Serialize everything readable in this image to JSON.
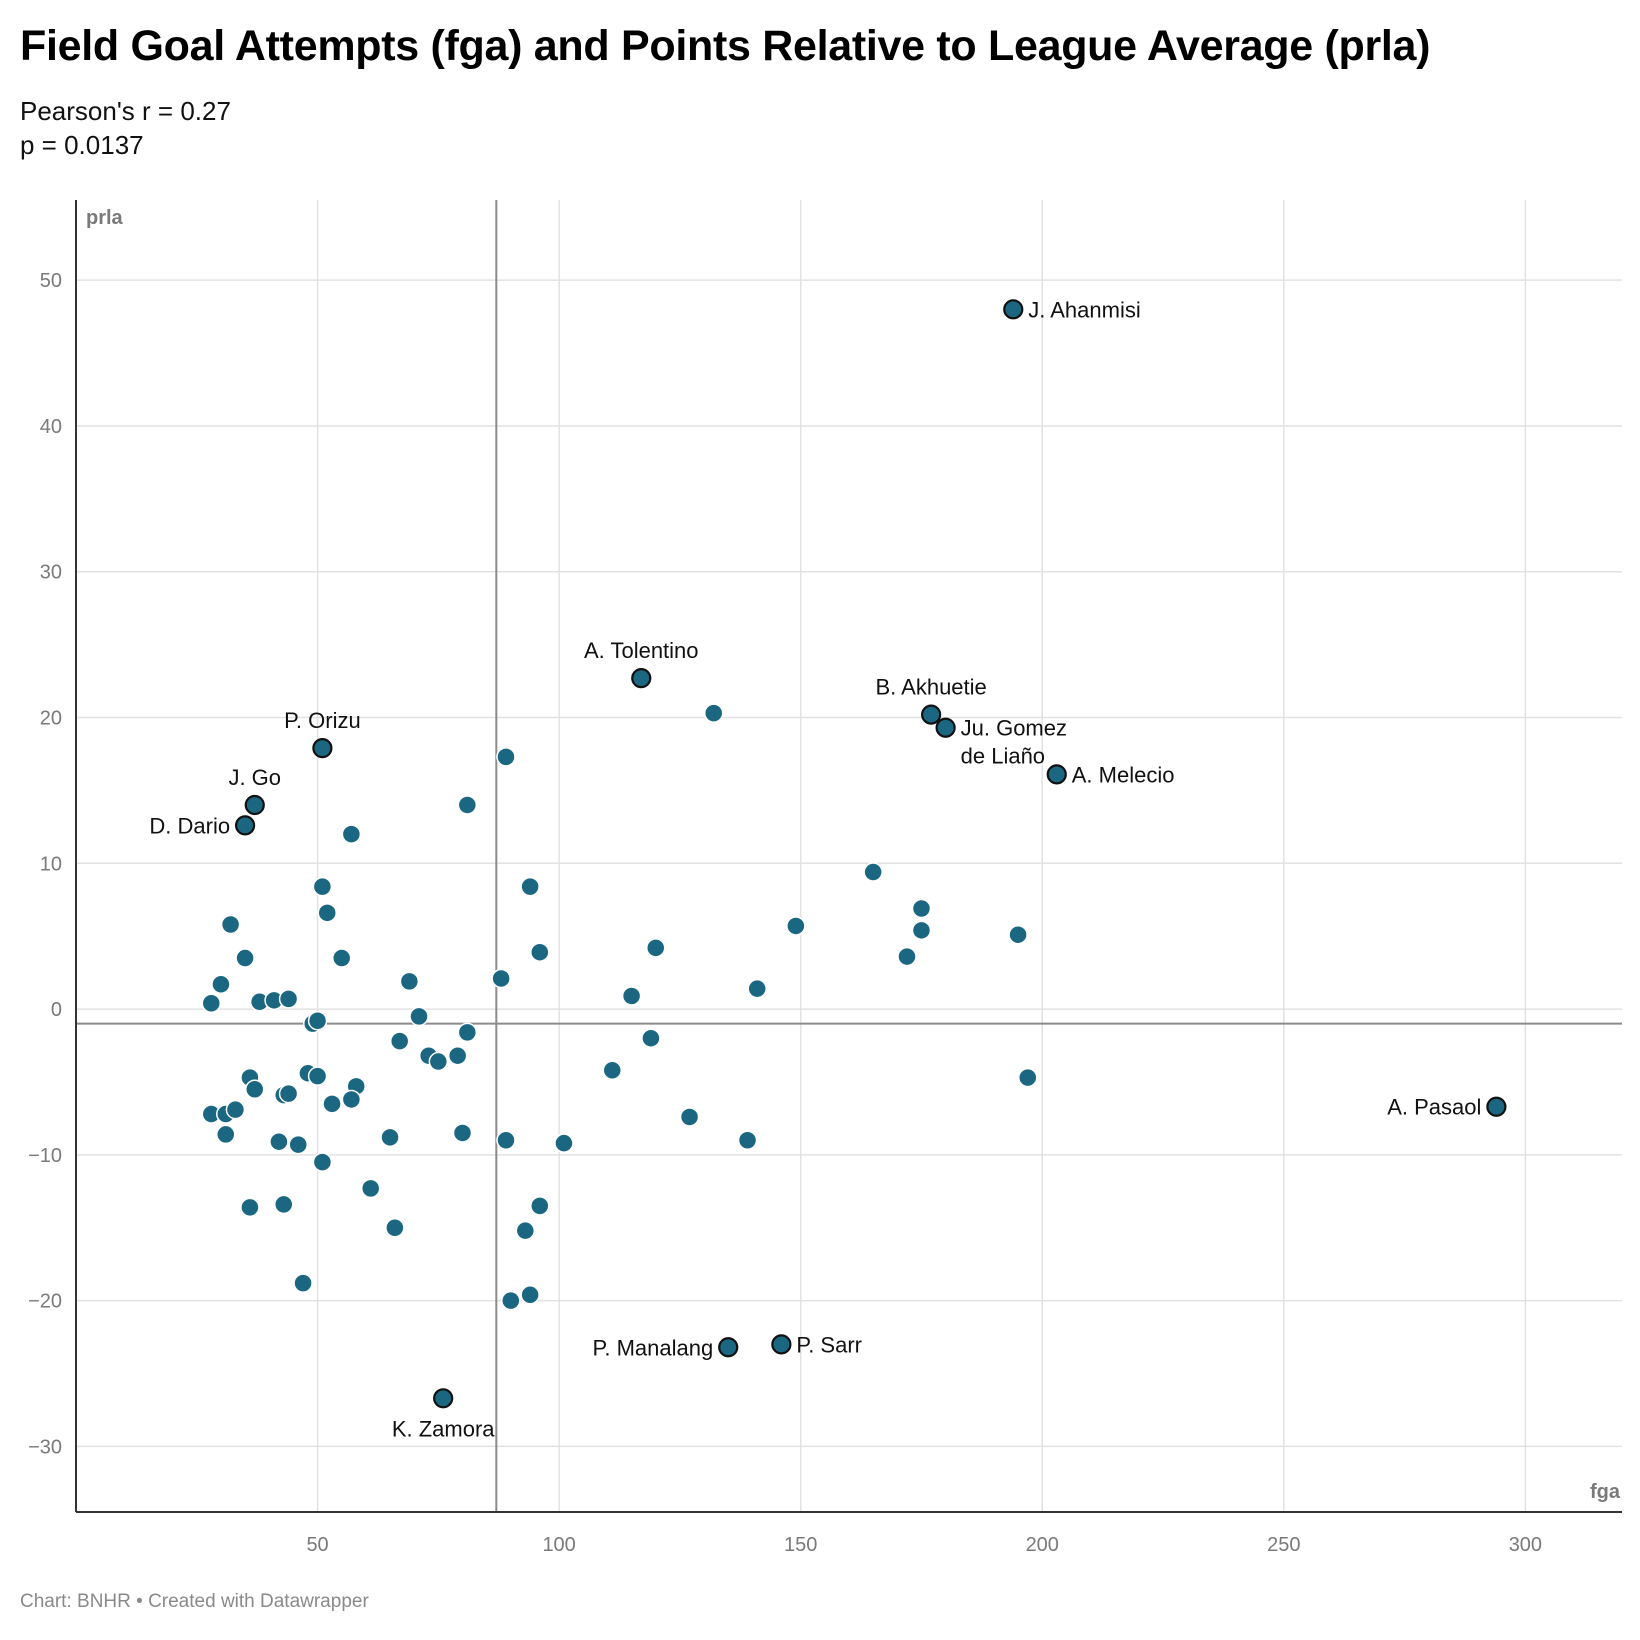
{
  "title": "Field Goal Attempts (fga) and Points Relative to League Average (prla)",
  "subtitle": [
    "Pearson's r = 0.27",
    "p = 0.0137"
  ],
  "footer": "Chart: BNHR • Created with Datawrapper",
  "colors": {
    "dot": "#1b6782",
    "highlight_stroke": "#111111",
    "grid": "#e2e2e2",
    "reference_line": "#8c8c8c",
    "axis": "#333333"
  },
  "chart_data": {
    "type": "scatter",
    "xlabel": "fga",
    "ylabel": "prla",
    "xlim": [
      0,
      320
    ],
    "ylim": [
      -34.5,
      55.5
    ],
    "xticks": [
      50,
      100,
      150,
      200,
      250,
      300
    ],
    "yticks": [
      50,
      40,
      30,
      20,
      10,
      0,
      -10,
      -20,
      -30
    ],
    "ytick_labels": [
      "50",
      "40",
      "30",
      "20",
      "10",
      "0",
      "−10",
      "−20",
      "−30"
    ],
    "grid": true,
    "reference_lines": {
      "x": 87,
      "y": -1
    },
    "labeled_points": [
      {
        "name": "J. Ahanmisi",
        "x": 194,
        "y": 48,
        "label_pos": "right"
      },
      {
        "name": "A. Tolentino",
        "x": 117,
        "y": 22.7,
        "label_pos": "above"
      },
      {
        "name": "B. Akhuetie",
        "x": 177,
        "y": 20.2,
        "label_pos": "above"
      },
      {
        "name": "Ju. Gomez de Liaño",
        "lines": [
          "Ju. Gomez",
          "de Liaño"
        ],
        "x": 180,
        "y": 19.3,
        "label_pos": "right"
      },
      {
        "name": "A. Melecio",
        "x": 203,
        "y": 16.1,
        "label_pos": "right"
      },
      {
        "name": "P. Orizu",
        "x": 51,
        "y": 17.9,
        "label_pos": "above"
      },
      {
        "name": "J. Go",
        "x": 37,
        "y": 14,
        "label_pos": "above"
      },
      {
        "name": "D. Dario",
        "x": 35,
        "y": 12.6,
        "label_pos": "left"
      },
      {
        "name": "A. Pasaol",
        "x": 294,
        "y": -6.7,
        "label_pos": "left"
      },
      {
        "name": "P. Manalang",
        "x": 135,
        "y": -23.2,
        "label_pos": "left"
      },
      {
        "name": "P. Sarr",
        "x": 146,
        "y": -23,
        "label_pos": "right"
      },
      {
        "name": "K. Zamora",
        "x": 76,
        "y": -26.7,
        "label_pos": "below"
      }
    ],
    "points": [
      {
        "x": 132,
        "y": 20.3
      },
      {
        "x": 89,
        "y": 17.3
      },
      {
        "x": 81,
        "y": 14
      },
      {
        "x": 57,
        "y": 12
      },
      {
        "x": 51,
        "y": 8.4
      },
      {
        "x": 94,
        "y": 8.4
      },
      {
        "x": 52,
        "y": 6.6
      },
      {
        "x": 32,
        "y": 5.8
      },
      {
        "x": 35,
        "y": 3.5
      },
      {
        "x": 55,
        "y": 3.5
      },
      {
        "x": 96,
        "y": 3.9
      },
      {
        "x": 120,
        "y": 4.2
      },
      {
        "x": 149,
        "y": 5.7
      },
      {
        "x": 165,
        "y": 9.4
      },
      {
        "x": 175,
        "y": 6.9
      },
      {
        "x": 175,
        "y": 5.4
      },
      {
        "x": 172,
        "y": 3.6
      },
      {
        "x": 195,
        "y": 5.1
      },
      {
        "x": 141,
        "y": 1.4
      },
      {
        "x": 115,
        "y": 0.9
      },
      {
        "x": 88,
        "y": 2.1
      },
      {
        "x": 69,
        "y": 1.9
      },
      {
        "x": 30,
        "y": 1.7
      },
      {
        "x": 28,
        "y": 0.4
      },
      {
        "x": 38,
        "y": 0.5
      },
      {
        "x": 41,
        "y": 0.6
      },
      {
        "x": 44,
        "y": 0.7
      },
      {
        "x": 49,
        "y": -1
      },
      {
        "x": 50,
        "y": -0.8
      },
      {
        "x": 71,
        "y": -0.5
      },
      {
        "x": 81,
        "y": -1.6
      },
      {
        "x": 67,
        "y": -2.2
      },
      {
        "x": 73,
        "y": -3.2
      },
      {
        "x": 75,
        "y": -3.6
      },
      {
        "x": 79,
        "y": -3.2
      },
      {
        "x": 119,
        "y": -2
      },
      {
        "x": 111,
        "y": -4.2
      },
      {
        "x": 197,
        "y": -4.7
      },
      {
        "x": 36,
        "y": -4.7
      },
      {
        "x": 37,
        "y": -5.5
      },
      {
        "x": 48,
        "y": -4.4
      },
      {
        "x": 50,
        "y": -4.6
      },
      {
        "x": 43,
        "y": -5.9
      },
      {
        "x": 44,
        "y": -5.8
      },
      {
        "x": 58,
        "y": -5.3
      },
      {
        "x": 57,
        "y": -6.2
      },
      {
        "x": 53,
        "y": -6.5
      },
      {
        "x": 28,
        "y": -7.2
      },
      {
        "x": 31,
        "y": -7.2
      },
      {
        "x": 33,
        "y": -6.9
      },
      {
        "x": 31,
        "y": -8.6
      },
      {
        "x": 42,
        "y": -9.1
      },
      {
        "x": 46,
        "y": -9.3
      },
      {
        "x": 51,
        "y": -10.5
      },
      {
        "x": 65,
        "y": -8.8
      },
      {
        "x": 80,
        "y": -8.5
      },
      {
        "x": 89,
        "y": -9
      },
      {
        "x": 101,
        "y": -9.2
      },
      {
        "x": 127,
        "y": -7.4
      },
      {
        "x": 139,
        "y": -9
      },
      {
        "x": 61,
        "y": -12.3
      },
      {
        "x": 36,
        "y": -13.6
      },
      {
        "x": 43,
        "y": -13.4
      },
      {
        "x": 66,
        "y": -15
      },
      {
        "x": 93,
        "y": -15.2
      },
      {
        "x": 96,
        "y": -13.5
      },
      {
        "x": 47,
        "y": -18.8
      },
      {
        "x": 90,
        "y": -20
      },
      {
        "x": 94,
        "y": -19.6
      }
    ]
  }
}
